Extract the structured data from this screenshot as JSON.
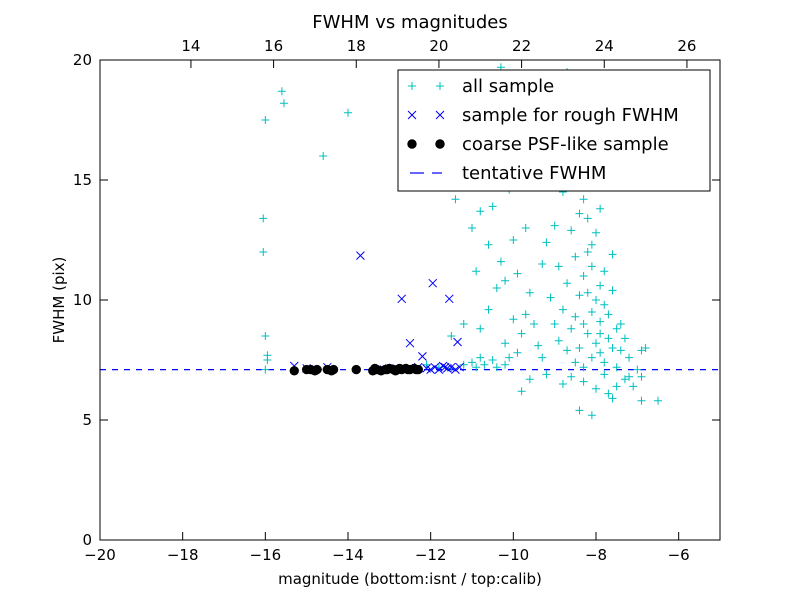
{
  "chart_data": {
    "type": "scatter",
    "title": "FWHM vs magnitudes",
    "xlabel": "magnitude (bottom:isnt / top:calib)",
    "ylabel": "FWHM (pix)",
    "xlim": [
      -20,
      -5
    ],
    "ylim": [
      0,
      20
    ],
    "x_ticks": [
      -20,
      -18,
      -16,
      -14,
      -12,
      -10,
      -8,
      -6
    ],
    "x_tick_labels": [
      "−20",
      "−18",
      "−16",
      "−14",
      "−12",
      "−10",
      "−8",
      "−6"
    ],
    "y_ticks": [
      0,
      5,
      10,
      15,
      20
    ],
    "y_tick_labels": [
      "0",
      "5",
      "10",
      "15",
      "20"
    ],
    "top_axis": {
      "offset": 31.8,
      "ticks": [
        14,
        16,
        18,
        20,
        22,
        24,
        26
      ],
      "tick_labels": [
        "14",
        "16",
        "18",
        "20",
        "22",
        "24",
        "26"
      ]
    },
    "legend_position": "top-right",
    "grid": false,
    "series": [
      {
        "name": "all sample",
        "marker": "plus",
        "color": "#00bfbf",
        "points": [
          [
            -16.0,
            17.5
          ],
          [
            -15.6,
            18.7
          ],
          [
            -15.55,
            18.2
          ],
          [
            -16.05,
            13.4
          ],
          [
            -16.05,
            12.0
          ],
          [
            -16.0,
            8.5
          ],
          [
            -15.95,
            7.7
          ],
          [
            -15.95,
            7.5
          ],
          [
            -16.0,
            7.1
          ],
          [
            -14.6,
            16.0
          ],
          [
            -14.0,
            17.8
          ],
          [
            -12.1,
            7.3
          ],
          [
            -11.8,
            7.2
          ],
          [
            -11.5,
            7.15
          ],
          [
            -11.2,
            7.3
          ],
          [
            -11.0,
            7.4
          ],
          [
            -10.9,
            7.2
          ],
          [
            -10.8,
            7.6
          ],
          [
            -10.7,
            7.3
          ],
          [
            -10.5,
            7.5
          ],
          [
            -10.4,
            7.2
          ],
          [
            -10.2,
            7.3
          ],
          [
            -10.1,
            7.6
          ],
          [
            -11.5,
            8.5
          ],
          [
            -11.2,
            9.0
          ],
          [
            -10.8,
            8.8
          ],
          [
            -10.6,
            9.6
          ],
          [
            -10.4,
            10.5
          ],
          [
            -10.2,
            8.2
          ],
          [
            -10.0,
            9.2
          ],
          [
            -9.9,
            7.8
          ],
          [
            -9.8,
            8.6
          ],
          [
            -9.7,
            9.4
          ],
          [
            -11.4,
            14.2
          ],
          [
            -11.0,
            13.0
          ],
          [
            -10.9,
            11.2
          ],
          [
            -10.6,
            12.3
          ],
          [
            -10.5,
            13.9
          ],
          [
            -10.3,
            11.6
          ],
          [
            -10.2,
            10.8
          ],
          [
            -10.1,
            14.6
          ],
          [
            -10.0,
            12.5
          ],
          [
            -9.9,
            11.1
          ],
          [
            -10.8,
            13.7
          ],
          [
            -10.4,
            16.2
          ],
          [
            -10.2,
            15.5
          ],
          [
            -10.1,
            17.4
          ],
          [
            -9.9,
            15.8
          ],
          [
            -9.7,
            13.0
          ],
          [
            -9.6,
            14.9
          ],
          [
            -9.5,
            17.0
          ],
          [
            -9.4,
            19.4
          ],
          [
            -9.2,
            18.6
          ],
          [
            -10.9,
            16.8
          ],
          [
            -11.0,
            18.2
          ],
          [
            -10.6,
            18.8
          ],
          [
            -10.3,
            19.7
          ],
          [
            -9.8,
            19.2
          ],
          [
            -9.3,
            17.9
          ],
          [
            -9.1,
            16.5
          ],
          [
            -8.9,
            18.0
          ],
          [
            -8.7,
            19.5
          ],
          [
            -8.5,
            17.5
          ],
          [
            -9.6,
            10.3
          ],
          [
            -9.5,
            9.0
          ],
          [
            -9.4,
            8.1
          ],
          [
            -9.3,
            11.5
          ],
          [
            -9.3,
            7.6
          ],
          [
            -9.2,
            12.4
          ],
          [
            -9.1,
            10.1
          ],
          [
            -9.0,
            9.0
          ],
          [
            -9.0,
            13.1
          ],
          [
            -8.9,
            8.3
          ],
          [
            -8.9,
            11.4
          ],
          [
            -8.8,
            9.6
          ],
          [
            -8.8,
            14.5
          ],
          [
            -8.7,
            7.9
          ],
          [
            -8.7,
            10.7
          ],
          [
            -8.6,
            12.9
          ],
          [
            -8.6,
            8.8
          ],
          [
            -8.5,
            11.8
          ],
          [
            -8.5,
            9.3
          ],
          [
            -8.5,
            7.4
          ],
          [
            -8.4,
            10.2
          ],
          [
            -8.4,
            13.6
          ],
          [
            -8.4,
            8.0
          ],
          [
            -8.3,
            11.0
          ],
          [
            -8.3,
            9.0
          ],
          [
            -8.3,
            7.2
          ],
          [
            -8.2,
            12.0
          ],
          [
            -8.2,
            8.6
          ],
          [
            -8.2,
            10.3
          ],
          [
            -8.1,
            9.5
          ],
          [
            -8.1,
            7.6
          ],
          [
            -8.1,
            11.4
          ],
          [
            -8.0,
            8.2
          ],
          [
            -8.0,
            10.0
          ],
          [
            -8.0,
            12.8
          ],
          [
            -7.9,
            9.1
          ],
          [
            -7.9,
            7.8
          ],
          [
            -7.9,
            8.6
          ],
          [
            -7.8,
            9.8
          ],
          [
            -7.8,
            7.4
          ],
          [
            -7.8,
            11.2
          ],
          [
            -7.7,
            8.4
          ],
          [
            -7.7,
            9.4
          ],
          [
            -7.6,
            8.0
          ],
          [
            -7.6,
            10.4
          ],
          [
            -7.5,
            8.8
          ],
          [
            -7.5,
            7.2
          ],
          [
            -7.4,
            9.0
          ],
          [
            -7.4,
            7.9
          ],
          [
            -7.3,
            8.4
          ],
          [
            -7.2,
            7.6
          ],
          [
            -7.0,
            7.1
          ],
          [
            -9.8,
            6.2
          ],
          [
            -9.6,
            6.7
          ],
          [
            -9.2,
            6.9
          ],
          [
            -8.8,
            6.5
          ],
          [
            -8.6,
            6.8
          ],
          [
            -8.4,
            5.4
          ],
          [
            -8.3,
            6.6
          ],
          [
            -8.1,
            5.2
          ],
          [
            -8.0,
            6.3
          ],
          [
            -7.8,
            6.9
          ],
          [
            -7.7,
            6.1
          ],
          [
            -7.6,
            5.9
          ],
          [
            -7.5,
            6.4
          ],
          [
            -7.3,
            6.7
          ],
          [
            -7.1,
            6.4
          ],
          [
            -6.9,
            5.8
          ],
          [
            -6.5,
            5.8
          ],
          [
            -6.9,
            7.9
          ],
          [
            -6.8,
            8.0
          ],
          [
            -7.2,
            6.8
          ],
          [
            -6.9,
            6.8
          ],
          [
            -8.6,
            16.2
          ],
          [
            -8.7,
            15.4
          ],
          [
            -8.5,
            14.8
          ],
          [
            -8.4,
            15.6
          ],
          [
            -8.3,
            14.2
          ],
          [
            -8.2,
            13.4
          ],
          [
            -8.1,
            12.3
          ],
          [
            -7.9,
            10.6
          ],
          [
            -7.6,
            11.9
          ],
          [
            -7.9,
            13.8
          ]
        ]
      },
      {
        "name": "sample for rough FWHM",
        "marker": "x",
        "color": "#0000ff",
        "points": [
          [
            -15.3,
            7.25
          ],
          [
            -15.0,
            7.15
          ],
          [
            -14.8,
            7.1
          ],
          [
            -14.5,
            7.2
          ],
          [
            -14.4,
            7.1
          ],
          [
            -13.7,
            11.85
          ],
          [
            -13.3,
            7.1
          ],
          [
            -13.0,
            7.15
          ],
          [
            -12.7,
            10.05
          ],
          [
            -12.5,
            8.2
          ],
          [
            -12.2,
            7.65
          ],
          [
            -12.3,
            7.2
          ],
          [
            -12.1,
            7.15
          ],
          [
            -11.95,
            10.7
          ],
          [
            -11.9,
            7.2
          ],
          [
            -11.8,
            7.1
          ],
          [
            -11.7,
            7.25
          ],
          [
            -11.6,
            7.15
          ],
          [
            -11.55,
            10.05
          ],
          [
            -11.5,
            7.2
          ],
          [
            -11.4,
            7.1
          ],
          [
            -11.35,
            8.25
          ],
          [
            -11.3,
            7.2
          ],
          [
            -12.0,
            7.1
          ],
          [
            -11.65,
            7.2
          ]
        ]
      },
      {
        "name": "coarse PSF-like sample",
        "marker": "circle",
        "color": "#000000",
        "points": [
          [
            -15.3,
            7.05
          ],
          [
            -15.0,
            7.1
          ],
          [
            -14.9,
            7.1
          ],
          [
            -14.8,
            7.05
          ],
          [
            -14.75,
            7.1
          ],
          [
            -14.5,
            7.1
          ],
          [
            -14.4,
            7.05
          ],
          [
            -14.35,
            7.1
          ],
          [
            -13.8,
            7.1
          ],
          [
            -13.4,
            7.05
          ],
          [
            -13.35,
            7.15
          ],
          [
            -13.3,
            7.1
          ],
          [
            -13.2,
            7.05
          ],
          [
            -13.1,
            7.1
          ],
          [
            -13.05,
            7.1
          ],
          [
            -13.0,
            7.15
          ],
          [
            -12.9,
            7.1
          ],
          [
            -12.85,
            7.05
          ],
          [
            -12.8,
            7.1
          ],
          [
            -12.75,
            7.15
          ],
          [
            -12.7,
            7.1
          ],
          [
            -12.6,
            7.15
          ],
          [
            -12.55,
            7.1
          ],
          [
            -12.5,
            7.1
          ],
          [
            -12.4,
            7.15
          ],
          [
            -12.35,
            7.1
          ],
          [
            -12.3,
            7.1
          ]
        ]
      },
      {
        "name": "tentative FWHM",
        "marker": "dashed-line",
        "color": "#0000ff",
        "y": 7.1
      }
    ]
  }
}
